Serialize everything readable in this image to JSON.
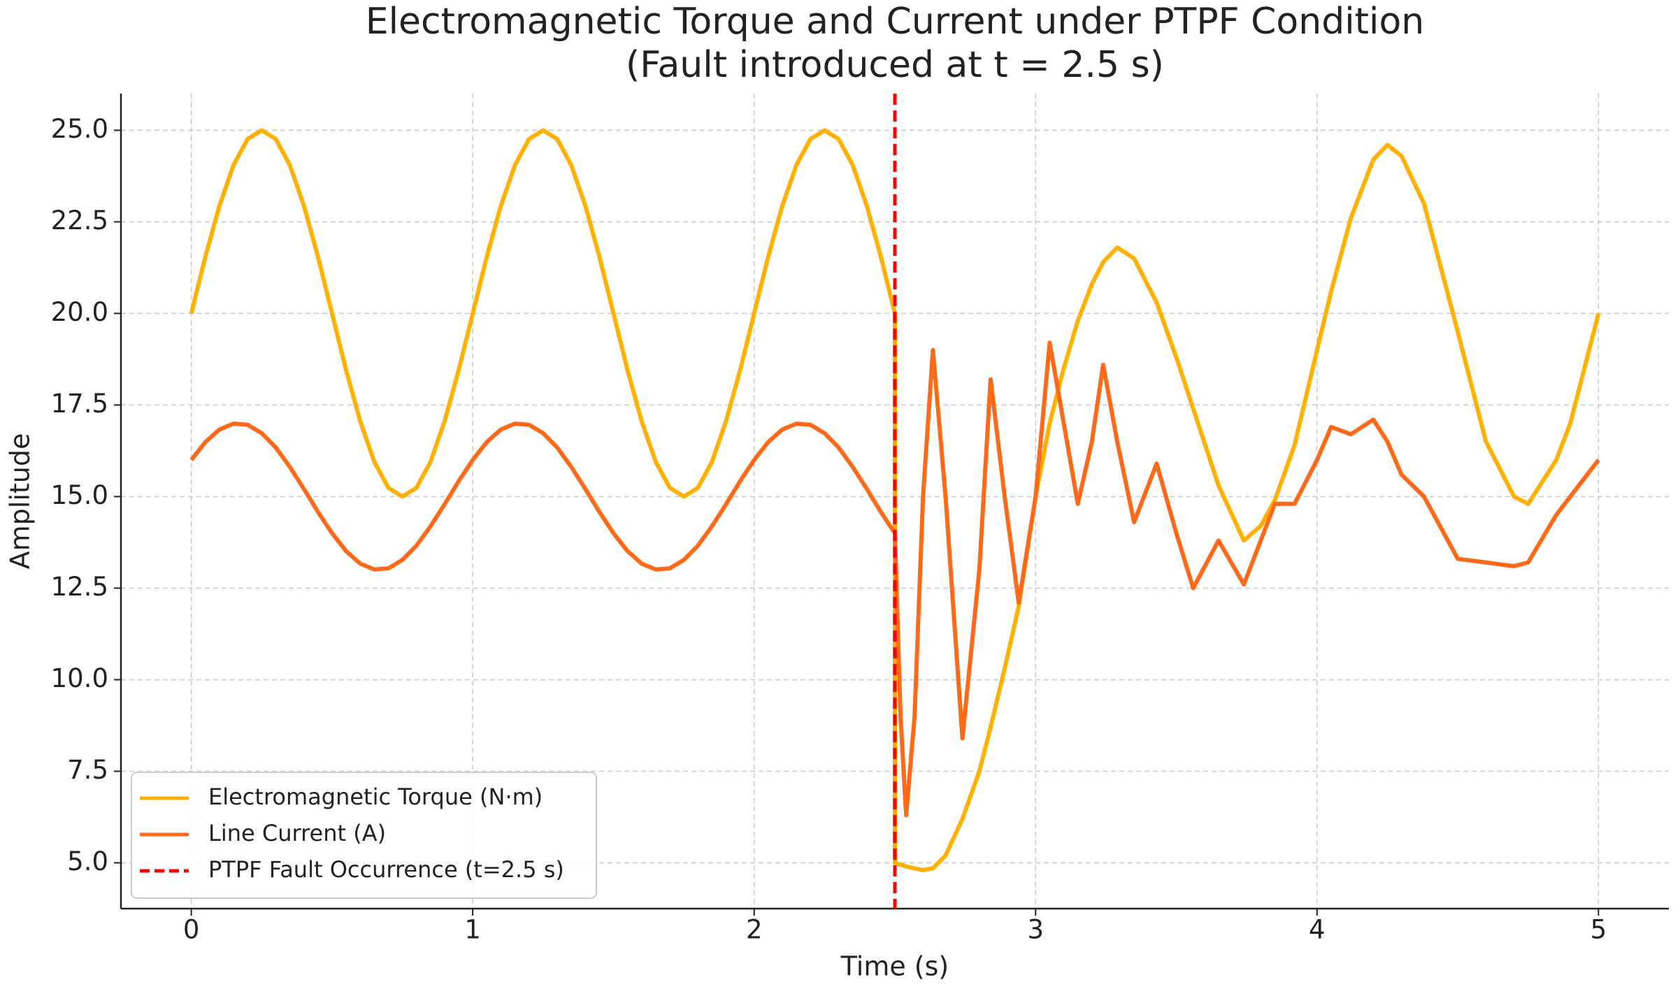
{
  "chart_data": {
    "type": "line",
    "title": "Electromagnetic Torque and Current under PTPF Condition",
    "subtitle": "(Fault introduced at t = 2.5 s)",
    "x_label": "Time (s)",
    "y_label": "Amplitude",
    "x": [
      0,
      0.05,
      0.1,
      0.15,
      0.2,
      0.25,
      0.3,
      0.35,
      0.4,
      0.45,
      0.5,
      0.55,
      0.6,
      0.65,
      0.7,
      0.75,
      0.8,
      0.85,
      0.9,
      0.95,
      1,
      1.05,
      1.1,
      1.15,
      1.2,
      1.25,
      1.3,
      1.35,
      1.4,
      1.45,
      1.5,
      1.55,
      1.6,
      1.65,
      1.7,
      1.75,
      1.8,
      1.85,
      1.9,
      1.95,
      2,
      2.05,
      2.1,
      2.15,
      2.2,
      2.25,
      2.3,
      2.35,
      2.4,
      2.45,
      2.5,
      2.5,
      2.52,
      2.54,
      2.57,
      2.6,
      2.635,
      2.68,
      2.74,
      2.8,
      2.84,
      2.89,
      2.94,
      3.0,
      3.05,
      3.1,
      3.15,
      3.2,
      3.24,
      3.29,
      3.35,
      3.43,
      3.5,
      3.56,
      3.65,
      3.74,
      3.8,
      3.85,
      3.92,
      4.0,
      4.05,
      4.12,
      4.2,
      4.25,
      4.3,
      4.38,
      4.5,
      4.6,
      4.7,
      4.75,
      4.85,
      4.9,
      5.0
    ],
    "series": [
      {
        "name": "Electromagnetic Torque (N·m)",
        "color": "#ffb000",
        "values": [
          20,
          21.55,
          22.94,
          24.05,
          24.76,
          25,
          24.76,
          24.05,
          22.94,
          21.55,
          20,
          18.45,
          17.06,
          15.95,
          15.24,
          15,
          15.24,
          15.95,
          17.06,
          18.45,
          20,
          21.55,
          22.94,
          24.05,
          24.76,
          25,
          24.76,
          24.05,
          22.94,
          21.55,
          20,
          18.45,
          17.06,
          15.95,
          15.24,
          15,
          15.24,
          15.95,
          17.06,
          18.45,
          20,
          21.55,
          22.94,
          24.05,
          24.76,
          25,
          24.76,
          24.05,
          22.94,
          21.55,
          20,
          5,
          4.95,
          4.9,
          4.85,
          4.8,
          4.85,
          5.2,
          6.2,
          7.5,
          8.7,
          10.3,
          12,
          15,
          17,
          18.5,
          19.8,
          20.8,
          21.4,
          21.8,
          21.5,
          20.3,
          18.8,
          17.4,
          15.3,
          13.8,
          14.2,
          14.9,
          16.4,
          19,
          20.6,
          22.6,
          24.2,
          24.6,
          24.3,
          23,
          19.5,
          16.5,
          15,
          14.8,
          16,
          17,
          20
        ]
      },
      {
        "name": "Line Current (A)",
        "color": "#ff6a1a",
        "values": [
          16,
          16.49,
          16.83,
          16.99,
          16.96,
          16.73,
          16.34,
          15.81,
          15.21,
          14.58,
          14,
          13.51,
          13.17,
          13.01,
          13.04,
          13.27,
          13.66,
          14.19,
          14.79,
          15.42,
          16,
          16.49,
          16.83,
          16.99,
          16.96,
          16.73,
          16.34,
          15.81,
          15.21,
          14.58,
          14,
          13.51,
          13.17,
          13.01,
          13.04,
          13.27,
          13.66,
          14.19,
          14.79,
          15.42,
          16,
          16.49,
          16.83,
          16.99,
          16.96,
          16.73,
          16.34,
          15.81,
          15.21,
          14.58,
          14,
          14,
          9,
          6.3,
          9,
          15,
          19,
          15,
          8.4,
          13,
          18.2,
          15,
          12.1,
          15,
          19.2,
          17,
          14.8,
          16.5,
          18.6,
          16.5,
          14.3,
          15.9,
          14,
          12.5,
          13.8,
          12.6,
          13.8,
          14.8,
          14.8,
          16,
          16.9,
          16.7,
          17.1,
          16.5,
          15.6,
          15,
          13.3,
          13.2,
          13.1,
          13.2,
          14.5,
          15,
          16
        ]
      }
    ],
    "vline": {
      "x": 2.5,
      "label": "PTPF Fault Occurrence (t=2.5 s)",
      "color": "#ff0000"
    },
    "xlim": [
      -0.25,
      5.25
    ],
    "ylim": [
      3.75,
      26
    ],
    "xticks": [
      0,
      1,
      2,
      3,
      4,
      5
    ],
    "yticks": [
      {
        "value": 5,
        "label": "5.0"
      },
      {
        "value": 7.5,
        "label": "7.5"
      },
      {
        "value": 10,
        "label": "10.0"
      },
      {
        "value": 12.5,
        "label": "12.5"
      },
      {
        "value": 15,
        "label": "15.0"
      },
      {
        "value": 17.5,
        "label": "17.5"
      },
      {
        "value": 20,
        "label": "20.0"
      },
      {
        "value": 22.5,
        "label": "22.5"
      },
      {
        "value": 25,
        "label": "25.0"
      }
    ],
    "grid": true,
    "legend": "lower left"
  }
}
